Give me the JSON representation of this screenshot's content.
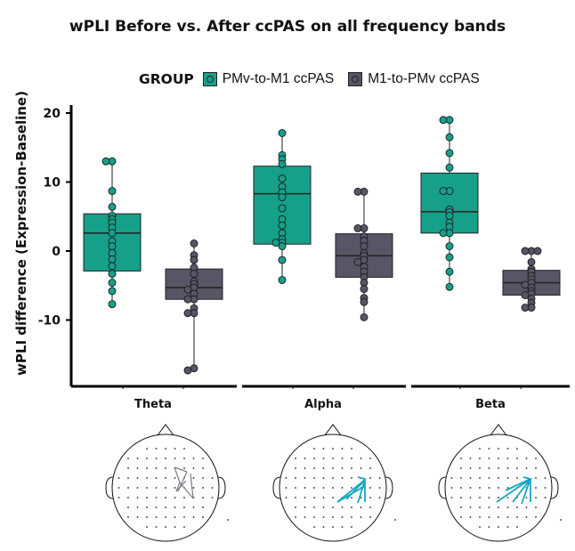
{
  "title": "wPLI Before vs. After ccPAS on all frequency bands",
  "legend": {
    "title": "GROUP",
    "items": [
      {
        "label": "PMv-to-M1 ccPAS",
        "color": "#16a08a"
      },
      {
        "label": "M1-to-PMv ccPAS",
        "color": "#585566"
      }
    ]
  },
  "chart_data": {
    "type": "box",
    "title": "wPLI Before vs. After ccPAS on all frequency bands",
    "ylabel": "wPLI difference (Expression-Baseline)",
    "xlabel": "",
    "ylim": [
      -20,
      21
    ],
    "yticks": [
      -10,
      0,
      10,
      20
    ],
    "legend_position": "top",
    "panels": [
      "Theta",
      "Alpha",
      "Beta"
    ],
    "series": [
      {
        "name": "PMv-to-M1 ccPAS",
        "color": "#16a08a",
        "boxes": [
          {
            "panel": "Theta",
            "min": -7.7,
            "q1": -2.9,
            "median": 2.6,
            "q3": 5.4,
            "max": 13.0,
            "points": [
              13.0,
              13.0,
              8.7,
              6.4,
              5.1,
              4.6,
              4.1,
              3.4,
              2.6,
              1.4,
              0.7,
              -0.3,
              -1.2,
              -2.2,
              -3.3,
              -4.6,
              -5.8,
              -7.7
            ]
          },
          {
            "panel": "Alpha",
            "min": -4.2,
            "q1": 1.0,
            "median": 8.3,
            "q3": 12.3,
            "max": 17.1,
            "points": [
              17.1,
              13.9,
              13.3,
              12.6,
              10.5,
              9.3,
              8.5,
              7.8,
              6.2,
              4.6,
              3.7,
              2.6,
              1.7,
              1.2,
              1.2,
              0.7,
              -1.3,
              -4.2
            ]
          },
          {
            "panel": "Beta",
            "min": -5.2,
            "q1": 2.6,
            "median": 5.7,
            "q3": 11.3,
            "max": 19.0,
            "points": [
              19.0,
              19.0,
              16.5,
              14.2,
              12.1,
              8.7,
              8.7,
              6.0,
              5.6,
              5.1,
              4.1,
              3.5,
              2.6,
              2.6,
              0.7,
              -0.9,
              -3.0,
              -5.2
            ]
          }
        ]
      },
      {
        "name": "M1-to-PMv ccPAS",
        "color": "#585566",
        "boxes": [
          {
            "panel": "Theta",
            "min": -17.3,
            "q1": -7.0,
            "median": -5.3,
            "q3": -2.6,
            "max": 1.1,
            "points": [
              1.1,
              -0.6,
              -1.3,
              -2.4,
              -3.3,
              -4.4,
              -4.8,
              -5.3,
              -5.6,
              -6.2,
              -7.0,
              -7.0,
              -8.3,
              -9.0,
              -9.0,
              -17.0,
              -17.3
            ]
          },
          {
            "panel": "Alpha",
            "min": -9.6,
            "q1": -3.8,
            "median": -0.7,
            "q3": 2.5,
            "max": 8.6,
            "points": [
              8.6,
              8.6,
              3.3,
              3.3,
              2.1,
              1.5,
              0.7,
              -0.3,
              -0.7,
              -1.3,
              -1.6,
              -2.3,
              -3.0,
              -3.8,
              -4.6,
              -5.5,
              -6.8,
              -7.4,
              -9.6
            ]
          },
          {
            "panel": "Beta",
            "min": -8.2,
            "q1": -6.4,
            "median": -4.6,
            "q3": -2.8,
            "max": 0.0,
            "points": [
              0.0,
              0.0,
              0.0,
              -1.6,
              -2.6,
              -3.0,
              -3.6,
              -4.1,
              -4.6,
              -4.9,
              -5.3,
              -5.8,
              -6.2,
              -6.4,
              -6.9,
              -7.5,
              -8.2,
              -8.2
            ]
          }
        ]
      }
    ]
  },
  "headmaps": [
    {
      "panel": "Theta",
      "arrow_color": "#7a7a86"
    },
    {
      "panel": "Alpha",
      "arrow_color": "#18a6c0"
    },
    {
      "panel": "Beta",
      "arrow_color": "#18a6c0"
    }
  ]
}
